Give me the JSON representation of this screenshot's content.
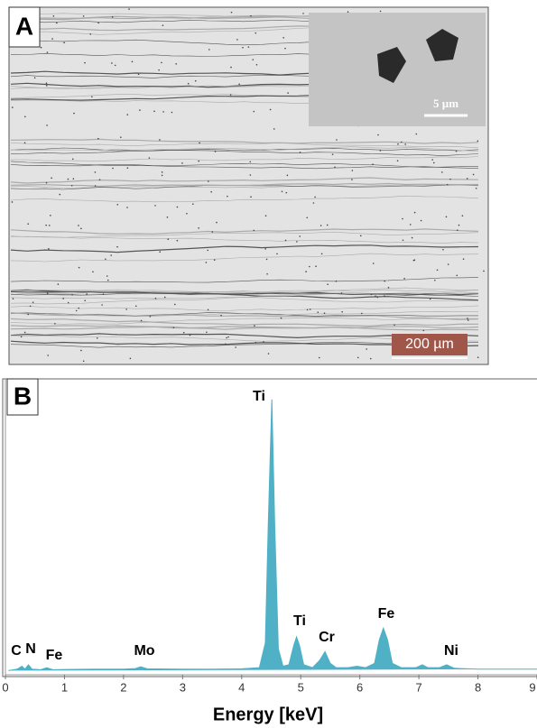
{
  "panel_a": {
    "label": "A",
    "inset_scale": "5 µm",
    "scale_bar": "200 µm"
  },
  "chart_data": {
    "type": "area",
    "panel_label": "B",
    "xlabel": "Energy [keV]",
    "x": [
      0.05,
      0.2,
      0.28,
      0.33,
      0.39,
      0.45,
      0.6,
      0.7,
      0.8,
      1.0,
      1.5,
      2.0,
      2.2,
      2.29,
      2.4,
      3.0,
      3.5,
      4.0,
      4.3,
      4.4,
      4.45,
      4.51,
      4.56,
      4.62,
      4.7,
      4.8,
      4.88,
      4.93,
      4.98,
      5.05,
      5.2,
      5.32,
      5.41,
      5.5,
      5.6,
      5.8,
      5.95,
      6.1,
      6.25,
      6.33,
      6.4,
      6.47,
      6.55,
      6.7,
      6.95,
      7.06,
      7.15,
      7.35,
      7.47,
      7.6,
      8.0,
      8.5,
      9.0
    ],
    "values": [
      0.5,
      1,
      2,
      1,
      2.5,
      1,
      0.8,
      1.5,
      0.8,
      0.9,
      1,
      1,
      1.2,
      1.8,
      1.1,
      1,
      1,
      1.1,
      1.5,
      10,
      50,
      93,
      50,
      8,
      2,
      2.5,
      9,
      12,
      9,
      2.5,
      1.5,
      4,
      7,
      3,
      1.5,
      1.5,
      2,
      1.5,
      3,
      11,
      15,
      11,
      3,
      1.5,
      1.5,
      2.5,
      1.5,
      1.5,
      2.5,
      1.3,
      1,
      1,
      1
    ],
    "color": "#4fb0c6",
    "xlim": [
      0,
      9
    ],
    "ylim": [
      0,
      100
    ],
    "xticks": [
      0,
      1,
      2,
      3,
      4,
      5,
      6,
      7,
      8,
      9
    ],
    "annotations": [
      "C",
      "N",
      "Fe",
      "Mo",
      "Ti",
      "Ti",
      "Cr",
      "Fe",
      "Ni"
    ]
  }
}
